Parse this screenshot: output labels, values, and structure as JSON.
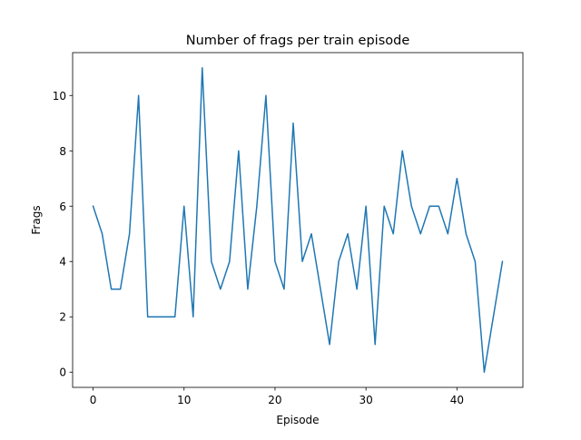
{
  "chart_data": {
    "type": "line",
    "title": "Number of frags per train episode",
    "xlabel": "Episode",
    "ylabel": "Frags",
    "xlim": [
      -2.25,
      47.25
    ],
    "ylim": [
      -0.55,
      11.55
    ],
    "x_ticks": [
      0,
      10,
      20,
      30,
      40
    ],
    "y_ticks": [
      0,
      2,
      4,
      6,
      8,
      10
    ],
    "grid": false,
    "legend": "none",
    "series": [
      {
        "color": "#1f77b4",
        "x": [
          0,
          1,
          2,
          3,
          4,
          5,
          6,
          7,
          8,
          9,
          10,
          11,
          12,
          13,
          14,
          15,
          16,
          17,
          18,
          19,
          20,
          21,
          22,
          23,
          24,
          25,
          26,
          27,
          28,
          29,
          30,
          31,
          32,
          33,
          34,
          35,
          36,
          37,
          38,
          39,
          40,
          41,
          42,
          43,
          44,
          45
        ],
        "values": [
          6,
          5,
          3,
          3,
          5,
          10,
          2,
          2,
          2,
          2,
          6,
          2,
          11,
          4,
          3,
          4,
          8,
          3,
          6,
          10,
          4,
          3,
          9,
          4,
          5,
          3,
          1,
          4,
          5,
          3,
          6,
          1,
          6,
          5,
          8,
          6,
          5,
          6,
          6,
          5,
          7,
          5,
          4,
          0,
          2,
          4
        ]
      }
    ]
  }
}
